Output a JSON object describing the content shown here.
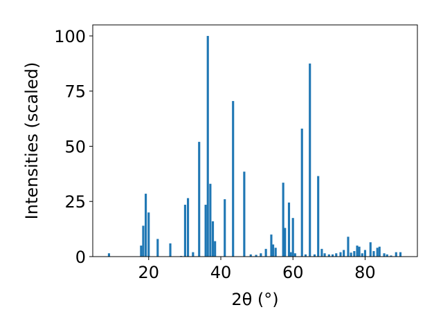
{
  "chart_data": {
    "type": "bar",
    "xlabel": "2θ (°)",
    "ylabel": "Intensities (scaled)",
    "xlim": [
      4.5,
      94.5
    ],
    "ylim": [
      0,
      105
    ],
    "xticks": [
      20,
      40,
      60,
      80
    ],
    "yticks": [
      0,
      25,
      50,
      75,
      100
    ],
    "bar_width": 0.6,
    "color": "#1f77b4",
    "grid": false,
    "x": [
      9.0,
      17.9,
      18.5,
      19.2,
      20.0,
      22.5,
      26.0,
      29.0,
      30.1,
      30.9,
      32.3,
      34.0,
      35.8,
      36.4,
      37.1,
      37.8,
      38.4,
      41.1,
      43.4,
      46.5,
      48.3,
      49.8,
      51.1,
      52.5,
      54.0,
      54.5,
      55.2,
      57.3,
      57.8,
      58.9,
      59.4,
      60.0,
      60.6,
      62.5,
      63.5,
      64.7,
      66.0,
      67.0,
      68.0,
      68.8,
      70.0,
      71.0,
      72.0,
      73.2,
      74.1,
      75.3,
      76.1,
      77.0,
      77.8,
      78.4,
      79.2,
      80.0,
      81.5,
      82.4,
      83.4,
      84.0,
      85.3,
      86.1,
      87.2,
      88.6,
      89.8
    ],
    "values": [
      1.5,
      5,
      14,
      28.5,
      20,
      8,
      6,
      0.3,
      23.5,
      26.5,
      2,
      52,
      23.5,
      100,
      33,
      16,
      7,
      26,
      70.5,
      38.5,
      1,
      0.8,
      1.5,
      3.5,
      10,
      5.5,
      4,
      33.5,
      13,
      24.5,
      2,
      17.5,
      1.5,
      58,
      1,
      87.5,
      1,
      36.5,
      3.5,
      1.5,
      1,
      1,
      1.5,
      2,
      3,
      9,
      1.8,
      2.5,
      5,
      4.5,
      1.5,
      3,
      6.5,
      2.5,
      4,
      4.5,
      1.5,
      1,
      0.5,
      2,
      2
    ]
  }
}
